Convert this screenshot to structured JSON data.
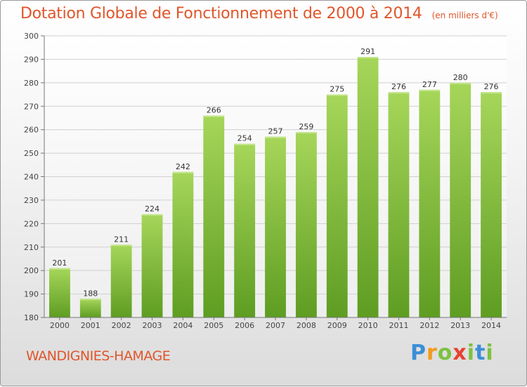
{
  "title": "Dotation Globale de Fonctionnement de 2000 à 2014",
  "unit_note": "(en milliers d'€)",
  "commune": "WANDIGNIES-HAMAGE",
  "brand": "Proxiti",
  "colors": {
    "bar": "#7fbf3a",
    "bar_dark": "#5e9d22",
    "title": "#e0552a"
  },
  "chart_data": {
    "type": "bar",
    "title": "Dotation Globale de Fonctionnement de 2000 à 2014",
    "categories": [
      "2000",
      "2001",
      "2002",
      "2003",
      "2004",
      "2005",
      "2006",
      "2007",
      "2008",
      "2009",
      "2010",
      "2011",
      "2012",
      "2013",
      "2014"
    ],
    "values": [
      201,
      188,
      211,
      224,
      242,
      266,
      254,
      257,
      259,
      275,
      291,
      276,
      277,
      280,
      276
    ],
    "ylim": [
      180,
      300
    ],
    "yticks": [
      180,
      190,
      200,
      210,
      220,
      230,
      240,
      250,
      260,
      270,
      280,
      290,
      300
    ],
    "grid": true,
    "legend": "none"
  }
}
